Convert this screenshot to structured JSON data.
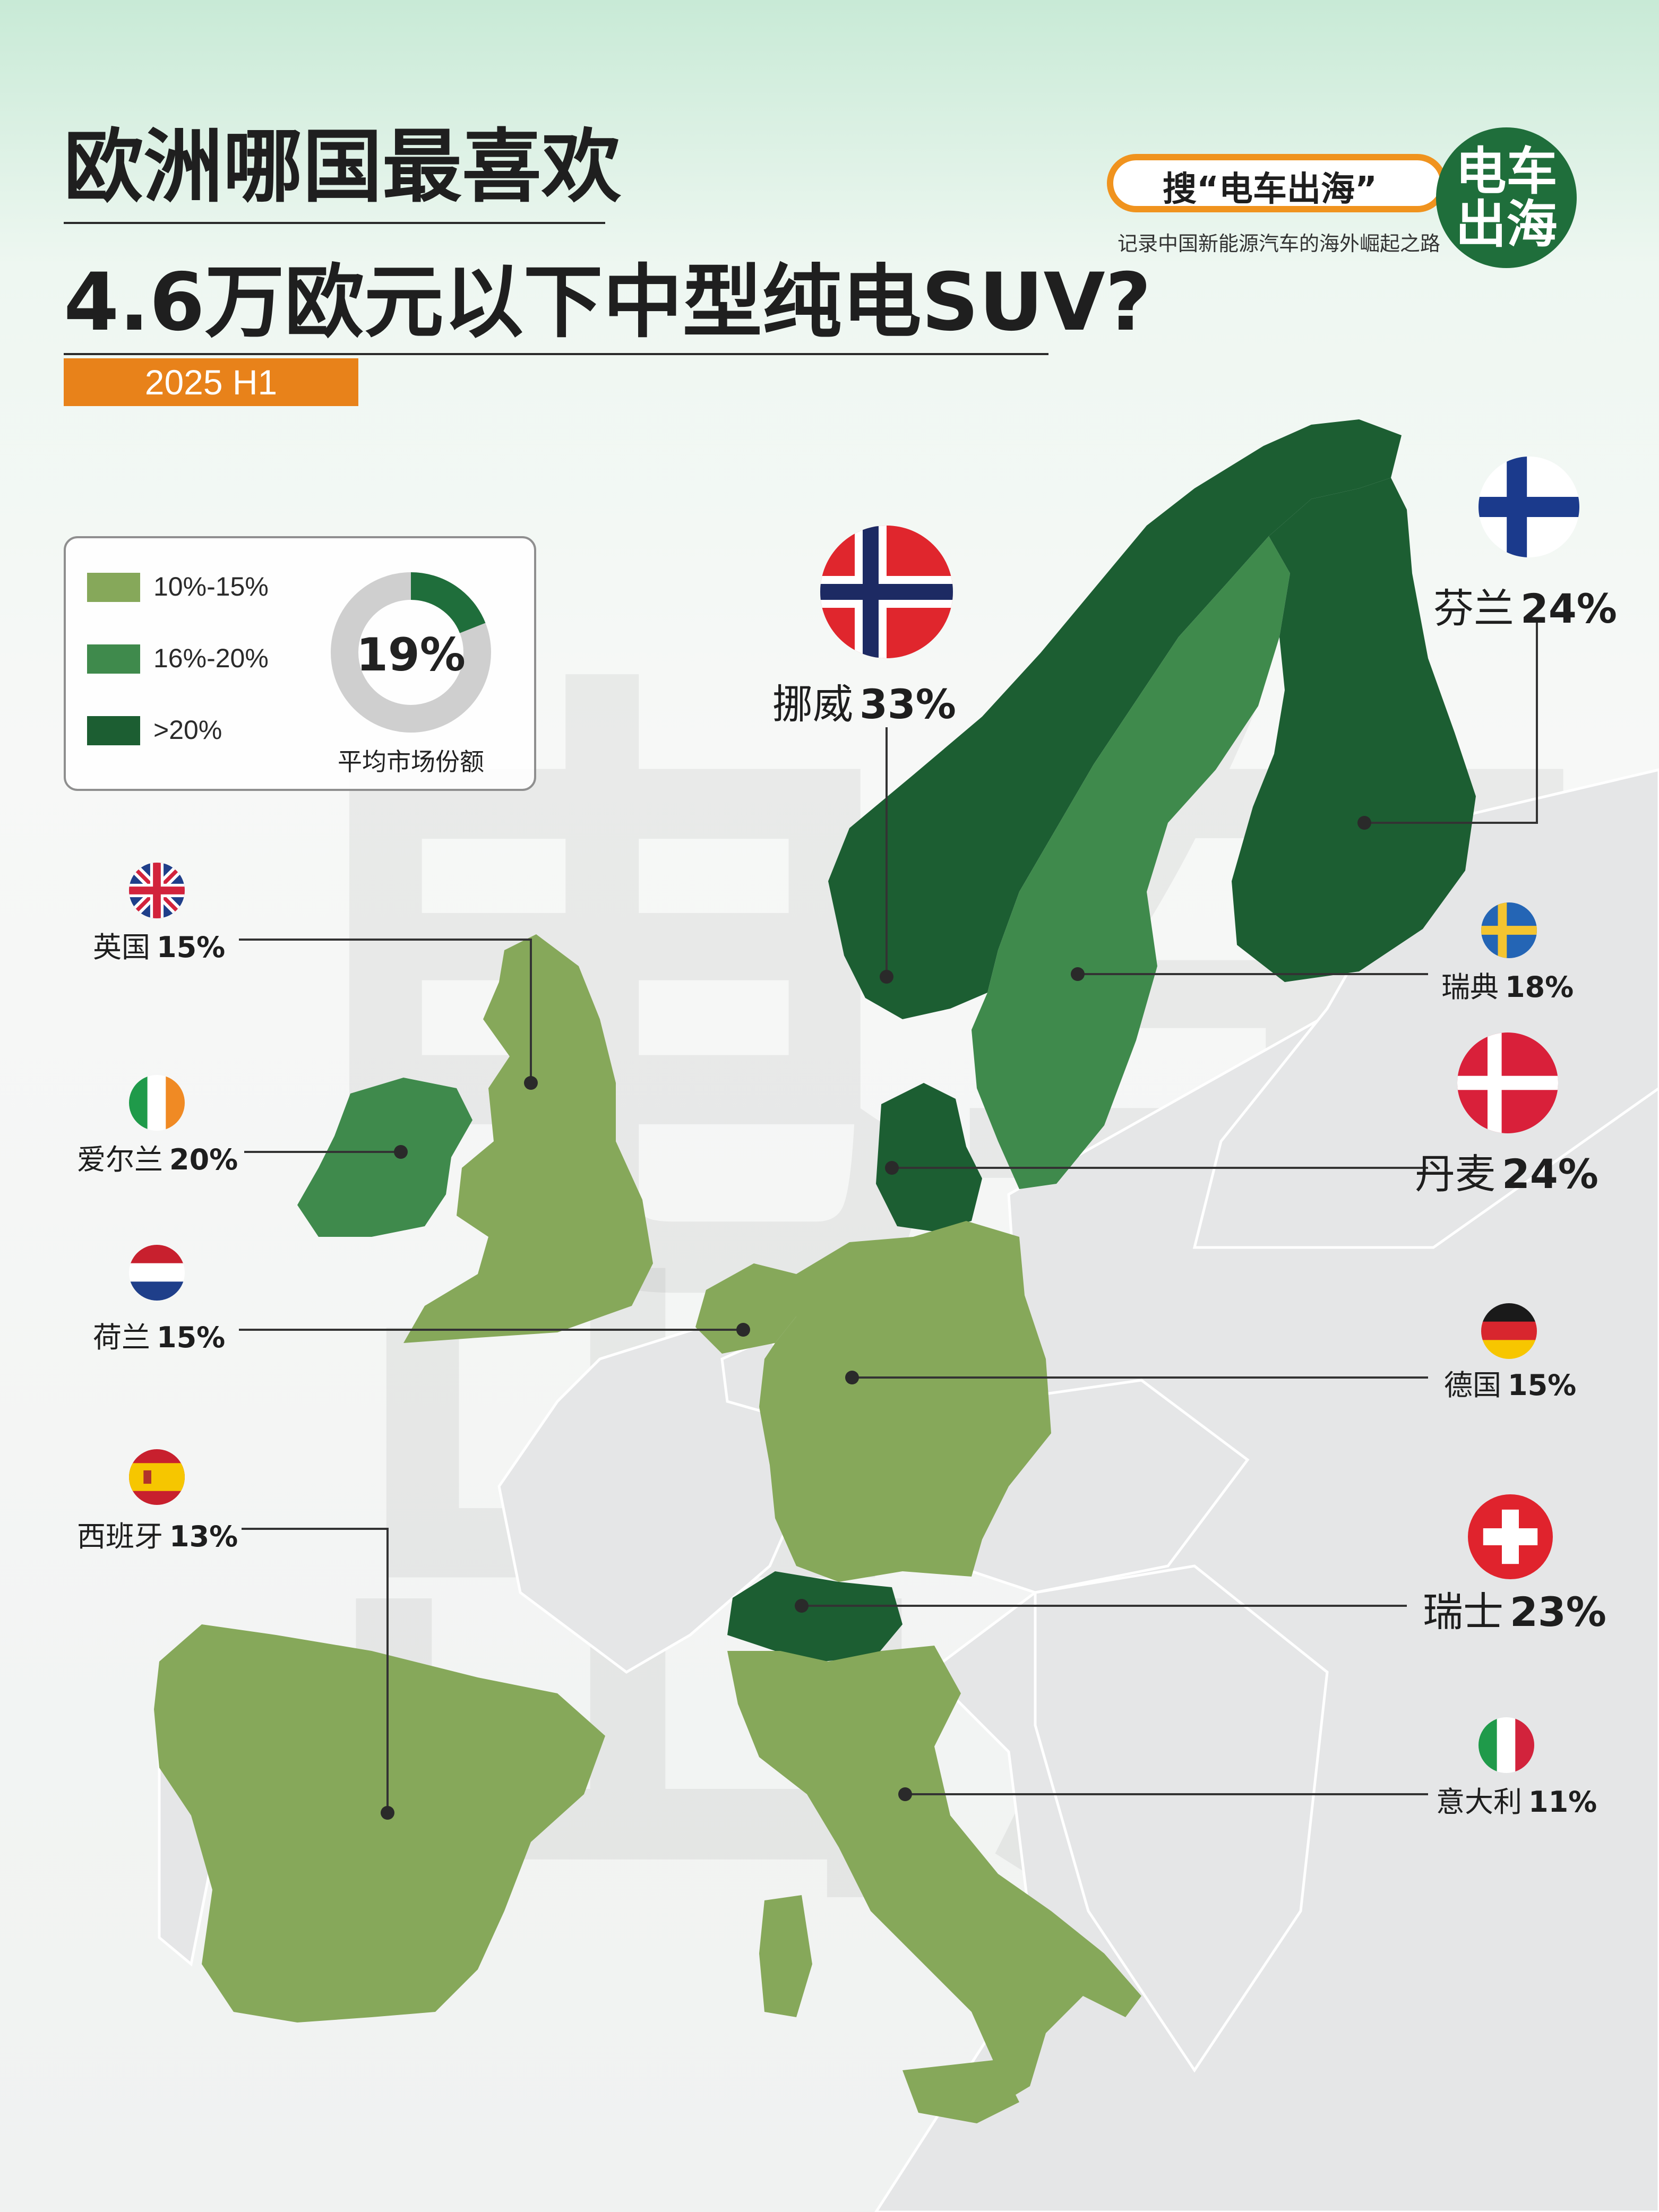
{
  "header": {
    "title_line1": "欧洲哪国最喜欢",
    "title_line2": "4.6万欧元以下中型纯电SUV?",
    "period": "2025  H1"
  },
  "brand": {
    "search_text": "搜“电车出海”",
    "tagline": "记录中国新能源汽车的海外崛起之路",
    "logo_line1": "电车",
    "logo_line2": "出海"
  },
  "legend": {
    "items": [
      {
        "label": "10%-15%",
        "color": "#86a85a"
      },
      {
        "label": "16%-20%",
        "color": "#3f8a4c"
      },
      {
        "label": ">20%",
        "color": "#1c5e32"
      }
    ],
    "average_value": "19%",
    "average_fraction": 0.19,
    "average_label": "平均市场份额"
  },
  "countries": [
    {
      "name": "挪威",
      "share": "33%",
      "flag": "norway-flag-icon"
    },
    {
      "name": "芬兰",
      "share": "24%",
      "flag": "finland-flag-icon"
    },
    {
      "name": "瑞典",
      "share": "18%",
      "flag": "sweden-flag-icon"
    },
    {
      "name": "丹麦",
      "share": "24%",
      "flag": "denmark-flag-icon"
    },
    {
      "name": "英国",
      "share": "15%",
      "flag": "uk-flag-icon"
    },
    {
      "name": "爱尔兰",
      "share": "20%",
      "flag": "ireland-flag-icon"
    },
    {
      "name": "荷兰",
      "share": "15%",
      "flag": "netherlands-flag-icon"
    },
    {
      "name": "德国",
      "share": "15%",
      "flag": "germany-flag-icon"
    },
    {
      "name": "西班牙",
      "share": "13%",
      "flag": "spain-flag-icon"
    },
    {
      "name": "瑞士",
      "share": "23%",
      "flag": "switzerland-flag-icon"
    },
    {
      "name": "意大利",
      "share": "11%",
      "flag": "italy-flag-icon"
    }
  ],
  "colors": {
    "low": "#86a85a",
    "mid": "#3f8a4c",
    "high": "#1c5e32",
    "other_land": "#e6e7e8",
    "accent_orange": "#e8821a",
    "brand_green": "#1f6e3b"
  }
}
